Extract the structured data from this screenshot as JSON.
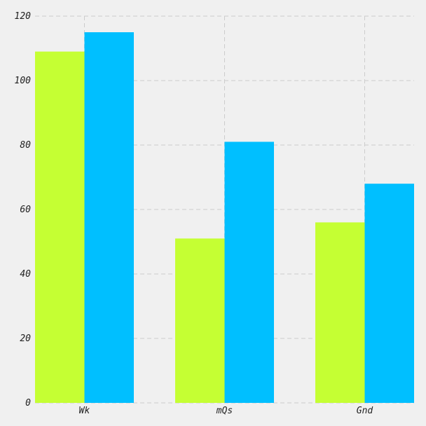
{
  "chart_data": {
    "type": "bar",
    "title": "",
    "xlabel": "",
    "ylabel": "",
    "categories": [
      "Wk",
      "mQs",
      "Gnd"
    ],
    "series": [
      {
        "values": [
          109,
          51,
          56
        ],
        "color": "#c5ff33"
      },
      {
        "values": [
          115,
          81,
          68
        ],
        "color": "#00bfff"
      }
    ],
    "ylim": [
      0,
      120
    ],
    "yticks": [
      0,
      20,
      40,
      60,
      80,
      100,
      120
    ],
    "grid": true,
    "background": "#f0f0f0"
  }
}
